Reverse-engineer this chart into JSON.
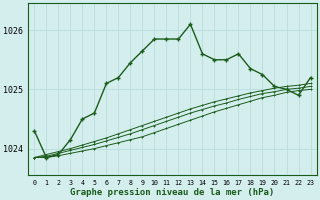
{
  "x": [
    0,
    1,
    2,
    3,
    4,
    5,
    6,
    7,
    8,
    9,
    10,
    11,
    12,
    13,
    14,
    15,
    16,
    17,
    18,
    19,
    20,
    21,
    22,
    23
  ],
  "main_line": [
    1024.3,
    1023.85,
    1023.9,
    1024.15,
    1024.5,
    1024.6,
    1025.1,
    1025.2,
    1025.45,
    1025.65,
    1025.85,
    1025.85,
    1025.85,
    1026.1,
    1025.6,
    1025.5,
    1025.5,
    1025.6,
    1025.35,
    1025.25,
    1025.05,
    1025.0,
    1024.9,
    1025.2
  ],
  "trend1": [
    1023.85,
    1023.85,
    1023.88,
    1023.92,
    1023.96,
    1024.0,
    1024.05,
    1024.1,
    1024.15,
    1024.2,
    1024.27,
    1024.34,
    1024.41,
    1024.48,
    1024.55,
    1024.62,
    1024.68,
    1024.74,
    1024.8,
    1024.86,
    1024.9,
    1024.95,
    1024.98,
    1025.0
  ],
  "trend2": [
    1023.85,
    1023.87,
    1023.92,
    1023.97,
    1024.02,
    1024.07,
    1024.13,
    1024.19,
    1024.25,
    1024.32,
    1024.39,
    1024.46,
    1024.53,
    1024.6,
    1024.66,
    1024.72,
    1024.77,
    1024.83,
    1024.88,
    1024.93,
    1024.96,
    1025.0,
    1025.02,
    1025.05
  ],
  "trend3": [
    1023.85,
    1023.9,
    1023.95,
    1024.0,
    1024.06,
    1024.12,
    1024.18,
    1024.25,
    1024.32,
    1024.39,
    1024.46,
    1024.53,
    1024.6,
    1024.67,
    1024.73,
    1024.79,
    1024.84,
    1024.89,
    1024.94,
    1024.98,
    1025.02,
    1025.05,
    1025.07,
    1025.1
  ],
  "line_color": "#1a5c1a",
  "bg_color": "#d4eeee",
  "grid_color": "#b8dede",
  "ylabel_left": [
    "1024",
    "1025",
    "1026"
  ],
  "yticks": [
    1024.0,
    1025.0,
    1026.0
  ],
  "ylim": [
    1023.55,
    1026.45
  ],
  "xlim": [
    -0.5,
    23.5
  ],
  "xlabel": "Graphe pression niveau de la mer (hPa)",
  "xticks": [
    0,
    1,
    2,
    3,
    4,
    5,
    6,
    7,
    8,
    9,
    10,
    11,
    12,
    13,
    14,
    15,
    16,
    17,
    18,
    19,
    20,
    21,
    22,
    23
  ]
}
